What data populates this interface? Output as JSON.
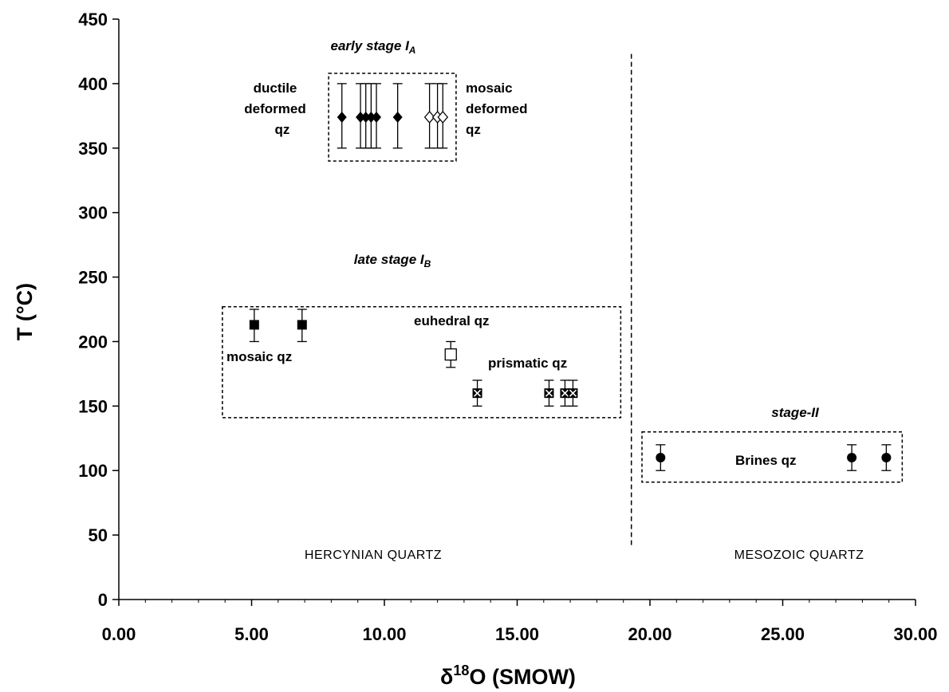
{
  "chart_data": {
    "type": "scatter",
    "title": "",
    "xlabel": "δ18O (SMOW)",
    "xlabel_parts": {
      "delta": "δ",
      "sup": "18",
      "rest": "O (SMOW)"
    },
    "ylabel": "T (°C)",
    "xlim": [
      0,
      30
    ],
    "ylim": [
      0,
      450
    ],
    "x_ticks": [
      "0.00",
      "5.00",
      "10.00",
      "15.00",
      "20.00",
      "25.00",
      "30.00"
    ],
    "y_ticks": [
      "0",
      "50",
      "100",
      "150",
      "200",
      "250",
      "300",
      "350",
      "400",
      "450"
    ],
    "grid": false,
    "legend": "none",
    "series": [
      {
        "marker": "filled-diamond",
        "color": "#000000",
        "points": [
          {
            "x": 8.4,
            "y": 374,
            "ylo": 350,
            "yhi": 400
          },
          {
            "x": 9.1,
            "y": 374,
            "ylo": 350,
            "yhi": 400
          },
          {
            "x": 9.3,
            "y": 374,
            "ylo": 350,
            "yhi": 400
          },
          {
            "x": 9.5,
            "y": 374,
            "ylo": 350,
            "yhi": 400
          },
          {
            "x": 9.7,
            "y": 374,
            "ylo": 350,
            "yhi": 400
          },
          {
            "x": 10.5,
            "y": 374,
            "ylo": 350,
            "yhi": 400
          }
        ]
      },
      {
        "marker": "open-diamond",
        "color": "#000000",
        "points": [
          {
            "x": 11.7,
            "y": 374,
            "ylo": 350,
            "yhi": 400
          },
          {
            "x": 12.0,
            "y": 374,
            "ylo": 350,
            "yhi": 400
          },
          {
            "x": 12.2,
            "y": 374,
            "ylo": 350,
            "yhi": 400
          }
        ]
      },
      {
        "marker": "filled-square",
        "color": "#000000",
        "points": [
          {
            "x": 5.1,
            "y": 213,
            "ylo": 200,
            "yhi": 225
          },
          {
            "x": 6.9,
            "y": 213,
            "ylo": 200,
            "yhi": 225
          }
        ]
      },
      {
        "marker": "open-square",
        "color": "#000000",
        "points": [
          {
            "x": 12.5,
            "y": 190,
            "ylo": 180,
            "yhi": 200
          }
        ]
      },
      {
        "marker": "crossed-square",
        "color": "#000000",
        "points": [
          {
            "x": 13.5,
            "y": 160,
            "ylo": 150,
            "yhi": 170
          },
          {
            "x": 16.2,
            "y": 160,
            "ylo": 150,
            "yhi": 170
          },
          {
            "x": 16.8,
            "y": 160,
            "ylo": 150,
            "yhi": 170
          },
          {
            "x": 17.1,
            "y": 160,
            "ylo": 150,
            "yhi": 170
          }
        ]
      },
      {
        "marker": "filled-circle",
        "color": "#000000",
        "points": [
          {
            "x": 20.4,
            "y": 110,
            "ylo": 100,
            "yhi": 120
          },
          {
            "x": 27.6,
            "y": 110,
            "ylo": 100,
            "yhi": 120
          },
          {
            "x": 28.9,
            "y": 110,
            "ylo": 100,
            "yhi": 120
          }
        ]
      }
    ],
    "group_boxes": [
      {
        "x0": 7.9,
        "x1": 12.7,
        "y0": 340,
        "y1": 408
      },
      {
        "x0": 3.9,
        "x1": 18.9,
        "y0": 141,
        "y1": 227
      },
      {
        "x0": 19.7,
        "x1": 29.5,
        "y0": 91,
        "y1": 130
      }
    ],
    "divider_x": 19.3,
    "divider_y": [
      41,
      423
    ],
    "annotations": {
      "early_stage": {
        "text": "early stage I",
        "sub": "A"
      },
      "ductile": [
        "ductile",
        "deformed",
        "qz"
      ],
      "mosaic_deformed": [
        "mosaic",
        "deformed",
        "qz"
      ],
      "late_stage": {
        "text": "late stage I",
        "sub": "B"
      },
      "mosaic_qz": "mosaic qz",
      "euhedral_qz": "euhedral qz",
      "prismatic_qz": "prismatic qz",
      "stage_ii": "stage-II",
      "brines_qz": "Brines qz",
      "hercynian": "HERCYNIAN QUARTZ",
      "mesozoic": "MESOZOIC QUARTZ"
    }
  }
}
